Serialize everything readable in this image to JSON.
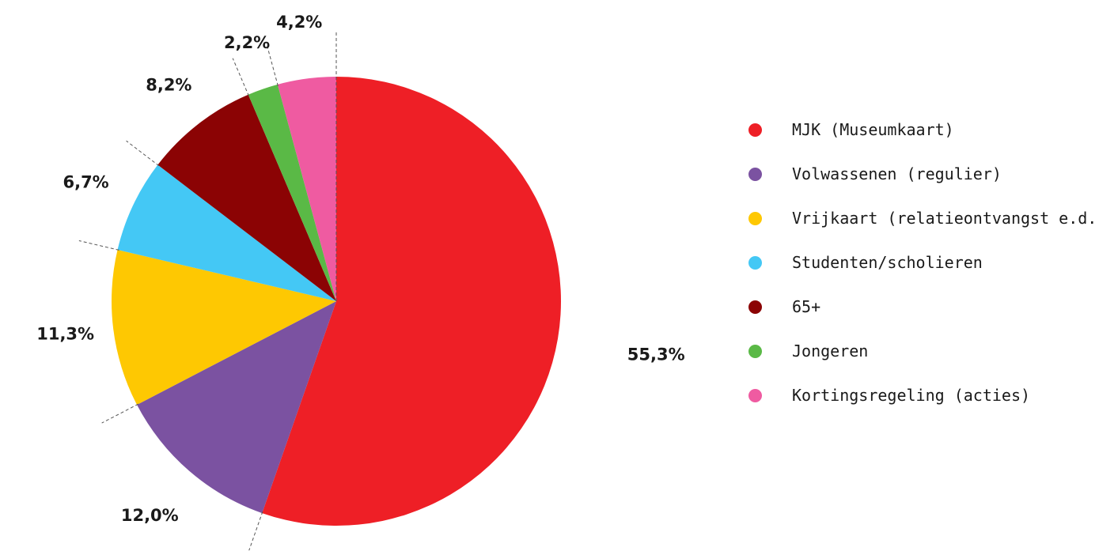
{
  "chart_data": {
    "type": "pie",
    "categories": [
      "MJK (Museumkaart)",
      "Volwassenen (regulier)",
      "Vrijkaart (relatieontvangst e.d.)",
      "Studenten/scholieren",
      "65+",
      "Jongeren",
      "Kortingsregeling (acties)"
    ],
    "values": [
      55.3,
      12.0,
      11.3,
      6.7,
      8.2,
      2.2,
      4.2
    ],
    "value_labels": [
      "55,3%",
      "12,0%",
      "11,3%",
      "6,7%",
      "8,2%",
      "2,2%",
      "4,2%"
    ],
    "colors": [
      "#ee1f26",
      "#7b52a1",
      "#fec802",
      "#44c8f5",
      "#8b0304",
      "#5ab946",
      "#ef5ba1"
    ],
    "legend_position": "right"
  }
}
